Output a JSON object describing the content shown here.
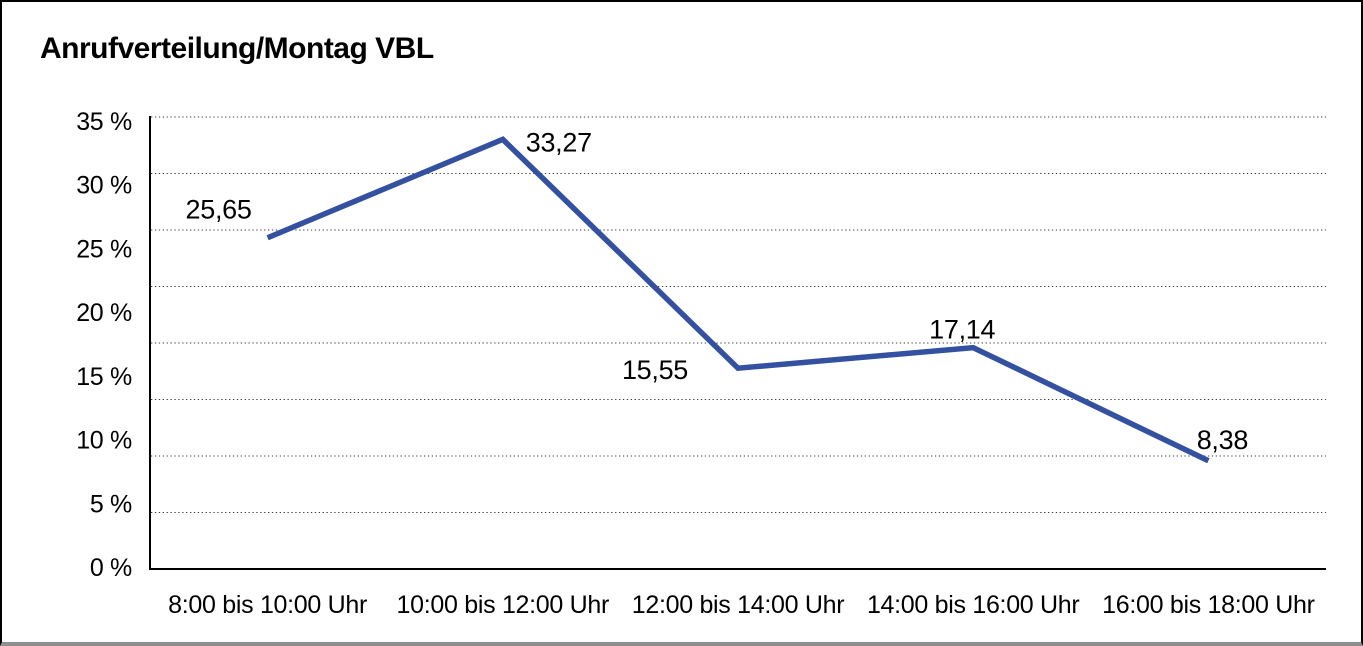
{
  "window": {
    "background": "#ffffff",
    "border_color": "#000000",
    "border_bottom_color": "#8f8f8f"
  },
  "chart_data": {
    "type": "line",
    "title": "Anrufverteilung/Montag VBL",
    "categories": [
      "8:00 bis 10:00 Uhr",
      "10:00 bis 12:00 Uhr",
      "12:00 bis 14:00 Uhr",
      "14:00 bis 16:00 Uhr",
      "16:00 bis 18:00 Uhr"
    ],
    "values": [
      25.65,
      33.27,
      15.55,
      17.14,
      8.38
    ],
    "data_labels": [
      "25,65",
      "33,27",
      "15,55",
      "17,14",
      "8,38"
    ],
    "y_tick_labels": [
      "35 %",
      "30 %",
      "25 %",
      "20 %",
      "15 %",
      "10 %",
      "5 %",
      "0 %"
    ],
    "ylim": [
      0,
      35
    ],
    "y_tick_step": 5,
    "xlabel": "",
    "ylabel": "",
    "grid": "horizontal-dotted",
    "legend": "none",
    "line_color": "#3351A0",
    "gridline_color": "#3c3c3c",
    "axis_color": "#000000",
    "text_color": "#000000"
  }
}
